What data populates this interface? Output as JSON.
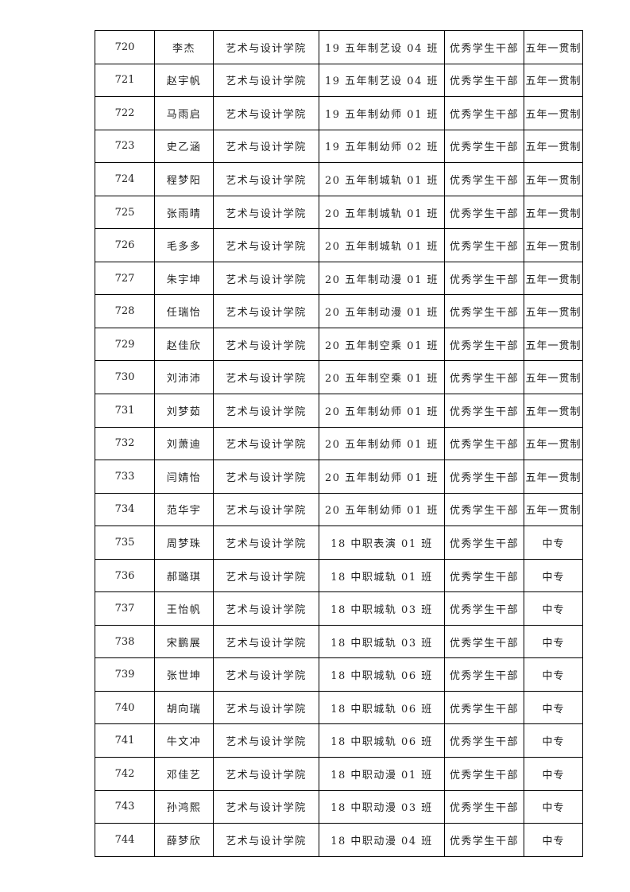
{
  "table": {
    "rows": [
      [
        "720",
        "李杰",
        "艺术与设计学院",
        "19 五年制艺设 04 班",
        "优秀学生干部",
        "五年一贯制"
      ],
      [
        "721",
        "赵宇帆",
        "艺术与设计学院",
        "19 五年制艺设 04 班",
        "优秀学生干部",
        "五年一贯制"
      ],
      [
        "722",
        "马雨启",
        "艺术与设计学院",
        "19 五年制幼师 01 班",
        "优秀学生干部",
        "五年一贯制"
      ],
      [
        "723",
        "史乙涵",
        "艺术与设计学院",
        "19 五年制幼师 02 班",
        "优秀学生干部",
        "五年一贯制"
      ],
      [
        "724",
        "程梦阳",
        "艺术与设计学院",
        "20 五年制城轨 01 班",
        "优秀学生干部",
        "五年一贯制"
      ],
      [
        "725",
        "张雨晴",
        "艺术与设计学院",
        "20 五年制城轨 01 班",
        "优秀学生干部",
        "五年一贯制"
      ],
      [
        "726",
        "毛多多",
        "艺术与设计学院",
        "20 五年制城轨 01 班",
        "优秀学生干部",
        "五年一贯制"
      ],
      [
        "727",
        "朱宇坤",
        "艺术与设计学院",
        "20 五年制动漫 01 班",
        "优秀学生干部",
        "五年一贯制"
      ],
      [
        "728",
        "任瑞怡",
        "艺术与设计学院",
        "20 五年制动漫 01 班",
        "优秀学生干部",
        "五年一贯制"
      ],
      [
        "729",
        "赵佳欣",
        "艺术与设计学院",
        "20 五年制空乘 01 班",
        "优秀学生干部",
        "五年一贯制"
      ],
      [
        "730",
        "刘沛沛",
        "艺术与设计学院",
        "20 五年制空乘 01 班",
        "优秀学生干部",
        "五年一贯制"
      ],
      [
        "731",
        "刘梦茹",
        "艺术与设计学院",
        "20 五年制幼师 01 班",
        "优秀学生干部",
        "五年一贯制"
      ],
      [
        "732",
        "刘萧迪",
        "艺术与设计学院",
        "20 五年制幼师 01 班",
        "优秀学生干部",
        "五年一贯制"
      ],
      [
        "733",
        "闫婧怡",
        "艺术与设计学院",
        "20 五年制幼师 01 班",
        "优秀学生干部",
        "五年一贯制"
      ],
      [
        "734",
        "范华宇",
        "艺术与设计学院",
        "20 五年制幼师 01 班",
        "优秀学生干部",
        "五年一贯制"
      ],
      [
        "735",
        "周梦珠",
        "艺术与设计学院",
        "18 中职表演 01 班",
        "优秀学生干部",
        "中专"
      ],
      [
        "736",
        "郝璐琪",
        "艺术与设计学院",
        "18 中职城轨 01 班",
        "优秀学生干部",
        "中专"
      ],
      [
        "737",
        "王怡帆",
        "艺术与设计学院",
        "18 中职城轨 03 班",
        "优秀学生干部",
        "中专"
      ],
      [
        "738",
        "宋鹏展",
        "艺术与设计学院",
        "18 中职城轨 03 班",
        "优秀学生干部",
        "中专"
      ],
      [
        "739",
        "张世坤",
        "艺术与设计学院",
        "18 中职城轨 06 班",
        "优秀学生干部",
        "中专"
      ],
      [
        "740",
        "胡向瑞",
        "艺术与设计学院",
        "18 中职城轨 06 班",
        "优秀学生干部",
        "中专"
      ],
      [
        "741",
        "牛文冲",
        "艺术与设计学院",
        "18 中职城轨 06 班",
        "优秀学生干部",
        "中专"
      ],
      [
        "742",
        "邓佳艺",
        "艺术与设计学院",
        "18 中职动漫 01 班",
        "优秀学生干部",
        "中专"
      ],
      [
        "743",
        "孙鸿熙",
        "艺术与设计学院",
        "18 中职动漫 03 班",
        "优秀学生干部",
        "中专"
      ],
      [
        "744",
        "薛梦欣",
        "艺术与设计学院",
        "18 中职动漫 04 班",
        "优秀学生干部",
        "中专"
      ]
    ]
  }
}
